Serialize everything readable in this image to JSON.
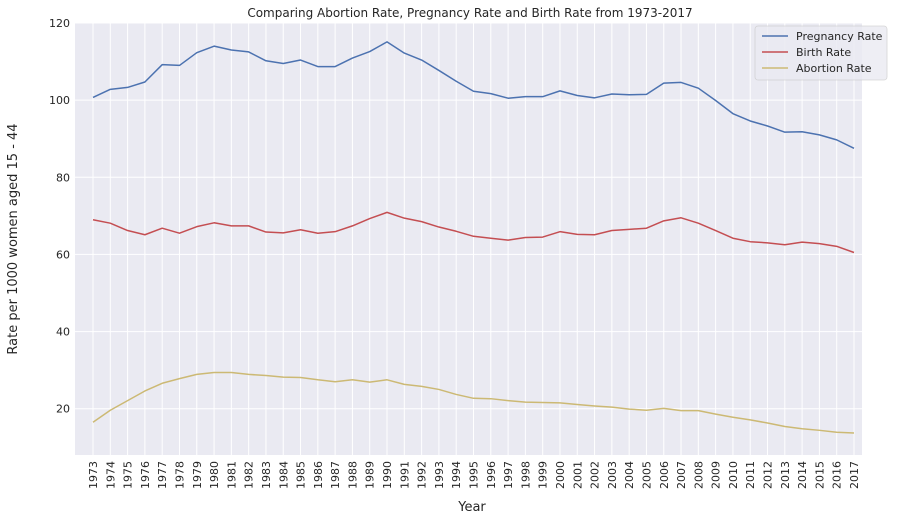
{
  "chart_data": {
    "type": "line",
    "title": "Comparing Abortion Rate, Pregnancy Rate and Birth Rate from 1973-2017",
    "xlabel": "Year",
    "ylabel": "Rate per 1000 women aged 15 - 44",
    "ylim": [
      8,
      120
    ],
    "yticks": [
      20,
      40,
      60,
      80,
      100,
      120
    ],
    "grid": true,
    "legend_position": "top-right",
    "x": [
      1973,
      1974,
      1975,
      1976,
      1977,
      1978,
      1979,
      1980,
      1981,
      1982,
      1983,
      1984,
      1985,
      1986,
      1987,
      1988,
      1989,
      1990,
      1991,
      1992,
      1993,
      1994,
      1995,
      1996,
      1997,
      1998,
      1999,
      2000,
      2001,
      2002,
      2003,
      2004,
      2005,
      2006,
      2007,
      2008,
      2009,
      2010,
      2011,
      2012,
      2013,
      2014,
      2015,
      2016,
      2017
    ],
    "series": [
      {
        "name": "Pregnancy Rate",
        "color": "#4c72b0",
        "values": [
          100.7,
          102.8,
          103.3,
          104.7,
          109.2,
          109.0,
          112.3,
          114.0,
          113.0,
          112.5,
          110.2,
          109.5,
          110.4,
          108.7,
          108.7,
          110.9,
          112.6,
          115.1,
          112.2,
          110.4,
          107.7,
          104.9,
          102.3,
          101.7,
          100.5,
          100.9,
          100.9,
          102.4,
          101.2,
          100.6,
          101.6,
          101.4,
          101.5,
          104.4,
          104.6,
          103.1,
          99.9,
          96.5,
          94.6,
          93.3,
          91.7,
          91.8,
          91.0,
          89.7,
          87.5
        ]
      },
      {
        "name": "Birth Rate",
        "color": "#c44e52",
        "values": [
          69.0,
          68.1,
          66.2,
          65.1,
          66.8,
          65.5,
          67.2,
          68.2,
          67.4,
          67.4,
          65.8,
          65.6,
          66.4,
          65.5,
          65.9,
          67.4,
          69.3,
          70.9,
          69.4,
          68.5,
          67.1,
          66.0,
          64.7,
          64.2,
          63.7,
          64.4,
          64.5,
          65.9,
          65.2,
          65.1,
          66.2,
          66.5,
          66.8,
          68.7,
          69.5,
          68.1,
          66.2,
          64.2,
          63.3,
          63.0,
          62.5,
          63.2,
          62.8,
          62.1,
          60.5
        ]
      },
      {
        "name": "Abortion Rate",
        "color": "#ccb974",
        "values": [
          16.5,
          19.6,
          22.1,
          24.6,
          26.6,
          27.8,
          28.9,
          29.4,
          29.4,
          28.9,
          28.6,
          28.2,
          28.1,
          27.5,
          27.0,
          27.5,
          26.9,
          27.5,
          26.3,
          25.8,
          25.0,
          23.7,
          22.7,
          22.6,
          22.1,
          21.7,
          21.6,
          21.5,
          21.1,
          20.7,
          20.4,
          19.9,
          19.6,
          20.1,
          19.5,
          19.5,
          18.6,
          17.8,
          17.1,
          16.3,
          15.4,
          14.8,
          14.4,
          13.9,
          13.7
        ]
      }
    ]
  }
}
